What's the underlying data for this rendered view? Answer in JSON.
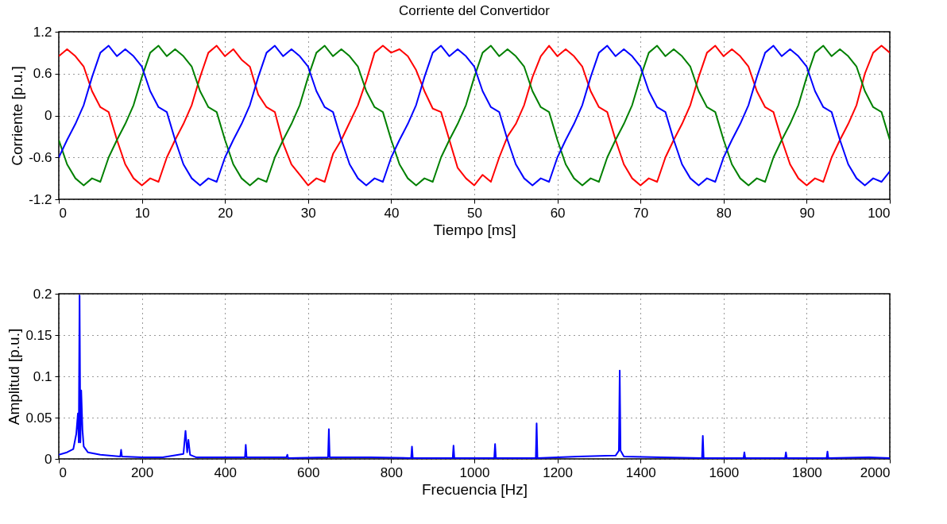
{
  "chart_data": [
    {
      "type": "line",
      "title": "Corriente del Convertidor",
      "xlabel": "Tiempo [ms]",
      "ylabel": "Corriente [p.u.]",
      "x": [
        0,
        1,
        2,
        3,
        4,
        5,
        6,
        7,
        8,
        9,
        10,
        11,
        12,
        13,
        14,
        15,
        16,
        17,
        18,
        19,
        20,
        21,
        22,
        23,
        24,
        25,
        26,
        27,
        28,
        29,
        30,
        31,
        32,
        33,
        34,
        35,
        36,
        37,
        38,
        39,
        40,
        41,
        42,
        43,
        44,
        45,
        46,
        47,
        48,
        49,
        50,
        51,
        52,
        53,
        54,
        55,
        56,
        57,
        58,
        59,
        60,
        61,
        62,
        63,
        64,
        65,
        66,
        67,
        68,
        69,
        70,
        71,
        72,
        73,
        74,
        75,
        76,
        77,
        78,
        79,
        80,
        81,
        82,
        83,
        84,
        85,
        86,
        87,
        88,
        89,
        90,
        91,
        92,
        93,
        94,
        95,
        96,
        97,
        98,
        99,
        100
      ],
      "series": [
        {
          "color": "#ff0000",
          "values": [
            0.85,
            0.95,
            0.85,
            0.7,
            0.35,
            0.12,
            0.05,
            -0.35,
            -0.7,
            -0.9,
            -1.0,
            -0.9,
            -0.95,
            -0.6,
            -0.35,
            -0.12,
            0.15,
            0.55,
            0.9,
            1.0,
            0.85,
            0.95,
            0.8,
            0.7,
            0.3,
            0.12,
            0.05,
            -0.4,
            -0.7,
            -0.85,
            -1.0,
            -0.9,
            -0.95,
            -0.55,
            -0.35,
            -0.1,
            0.15,
            0.5,
            0.9,
            1.0,
            0.9,
            0.95,
            0.85,
            0.65,
            0.35,
            0.1,
            0.05,
            -0.35,
            -0.75,
            -0.9,
            -1.0,
            -0.85,
            -0.95,
            -0.6,
            -0.3,
            -0.12,
            0.15,
            0.55,
            0.85,
            1.0,
            0.85,
            0.95,
            0.85,
            0.7,
            0.35,
            0.12,
            0.05,
            -0.35,
            -0.7,
            -0.9,
            -1.0,
            -0.9,
            -0.95,
            -0.6,
            -0.35,
            -0.12,
            0.15,
            0.55,
            0.9,
            1.0,
            0.85,
            0.95,
            0.85,
            0.7,
            0.35,
            0.12,
            0.05,
            -0.35,
            -0.7,
            -0.9,
            -1.0,
            -0.9,
            -0.95,
            -0.6,
            -0.35,
            -0.12,
            0.15,
            0.6,
            0.9,
            1.0,
            0.9
          ]
        },
        {
          "color": "#008000",
          "values": [
            -0.35,
            -0.7,
            -0.9,
            -1.0,
            -0.9,
            -0.95,
            -0.6,
            -0.35,
            -0.12,
            0.15,
            0.55,
            0.9,
            1.0,
            0.85,
            0.95,
            0.85,
            0.7,
            0.35,
            0.12,
            0.05,
            -0.35,
            -0.7,
            -0.9,
            -1.0,
            -0.9,
            -0.95,
            -0.6,
            -0.35,
            -0.12,
            0.15,
            0.55,
            0.9,
            1.0,
            0.85,
            0.95,
            0.85,
            0.7,
            0.35,
            0.12,
            0.05,
            -0.35,
            -0.7,
            -0.9,
            -1.0,
            -0.9,
            -0.95,
            -0.6,
            -0.35,
            -0.12,
            0.15,
            0.55,
            0.9,
            1.0,
            0.85,
            0.95,
            0.85,
            0.7,
            0.35,
            0.12,
            0.05,
            -0.35,
            -0.7,
            -0.9,
            -1.0,
            -0.9,
            -0.95,
            -0.6,
            -0.35,
            -0.12,
            0.15,
            0.55,
            0.9,
            1.0,
            0.85,
            0.95,
            0.85,
            0.7,
            0.35,
            0.12,
            0.05,
            -0.35,
            -0.7,
            -0.9,
            -1.0,
            -0.9,
            -0.95,
            -0.6,
            -0.35,
            -0.12,
            0.15,
            0.55,
            0.9,
            1.0,
            0.85,
            0.95,
            0.85,
            0.7,
            0.35,
            0.12,
            0.05,
            -0.35
          ]
        },
        {
          "color": "#0000ff",
          "values": [
            -0.6,
            -0.35,
            -0.12,
            0.15,
            0.55,
            0.9,
            1.0,
            0.85,
            0.95,
            0.85,
            0.7,
            0.35,
            0.12,
            0.05,
            -0.35,
            -0.7,
            -0.9,
            -1.0,
            -0.9,
            -0.95,
            -0.6,
            -0.35,
            -0.12,
            0.15,
            0.55,
            0.9,
            1.0,
            0.85,
            0.95,
            0.85,
            0.7,
            0.35,
            0.12,
            0.05,
            -0.35,
            -0.7,
            -0.9,
            -1.0,
            -0.9,
            -0.95,
            -0.6,
            -0.35,
            -0.12,
            0.15,
            0.55,
            0.9,
            1.0,
            0.85,
            0.95,
            0.85,
            0.7,
            0.35,
            0.12,
            0.05,
            -0.35,
            -0.7,
            -0.9,
            -1.0,
            -0.9,
            -0.95,
            -0.6,
            -0.35,
            -0.12,
            0.15,
            0.55,
            0.9,
            1.0,
            0.85,
            0.95,
            0.85,
            0.7,
            0.35,
            0.12,
            0.05,
            -0.35,
            -0.7,
            -0.9,
            -1.0,
            -0.9,
            -0.95,
            -0.6,
            -0.35,
            -0.12,
            0.15,
            0.55,
            0.9,
            1.0,
            0.85,
            0.95,
            0.85,
            0.7,
            0.35,
            0.12,
            0.05,
            -0.35,
            -0.7,
            -0.9,
            -1.0,
            -0.9,
            -0.95,
            -0.8
          ]
        }
      ],
      "xlim": [
        0,
        100
      ],
      "ylim": [
        -1.2,
        1.2
      ],
      "xticks": [
        0,
        10,
        20,
        30,
        40,
        50,
        60,
        70,
        80,
        90,
        100
      ],
      "yticks": [
        -1.2,
        -0.6,
        0,
        0.6,
        1.2
      ],
      "grid": true
    },
    {
      "type": "line",
      "xlabel": "Frecuencia [Hz]",
      "ylabel": "Amplitud [p.u.]",
      "x": [
        0,
        20,
        35,
        42,
        46,
        48,
        50,
        52,
        54,
        57,
        60,
        70,
        100,
        148,
        150,
        152,
        200,
        250,
        300,
        305,
        309,
        312,
        316,
        330,
        448,
        450,
        452,
        548,
        550,
        552,
        648,
        650,
        652,
        750,
        848,
        850,
        852,
        948,
        950,
        952,
        1048,
        1050,
        1052,
        1148,
        1150,
        1152,
        1250,
        1340,
        1348,
        1350,
        1352,
        1360,
        1450,
        1548,
        1550,
        1552,
        1648,
        1650,
        1652,
        1748,
        1750,
        1752,
        1848,
        1850,
        1852,
        1950,
        2000
      ],
      "series": [
        {
          "color": "#0000ff",
          "values": [
            0.005,
            0.008,
            0.012,
            0.03,
            0.055,
            0.02,
            0.198,
            0.02,
            0.083,
            0.035,
            0.015,
            0.008,
            0.005,
            0.003,
            0.011,
            0.003,
            0.002,
            0.002,
            0.006,
            0.034,
            0.008,
            0.023,
            0.005,
            0.002,
            0.002,
            0.017,
            0.002,
            0.002,
            0.005,
            0.001,
            0.002,
            0.036,
            0.002,
            0.002,
            0.001,
            0.015,
            0.001,
            0.001,
            0.016,
            0.001,
            0.001,
            0.018,
            0.001,
            0.001,
            0.043,
            0.001,
            0.003,
            0.004,
            0.01,
            0.107,
            0.01,
            0.003,
            0.002,
            0.001,
            0.028,
            0.001,
            0.001,
            0.008,
            0.001,
            0.001,
            0.008,
            0.001,
            0.001,
            0.009,
            0.001,
            0.002,
            0.001
          ]
        }
      ],
      "xlim": [
        0,
        2000
      ],
      "ylim": [
        0,
        0.2
      ],
      "xticks": [
        0,
        200,
        400,
        600,
        800,
        1000,
        1200,
        1400,
        1600,
        1800,
        2000
      ],
      "yticks": [
        0,
        0.05,
        0.1,
        0.15,
        0.2
      ],
      "grid": true
    }
  ]
}
